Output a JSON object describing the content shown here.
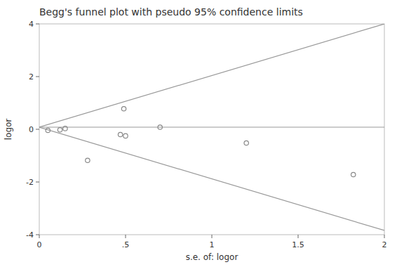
{
  "chart_data": {
    "type": "scatter",
    "title": "Begg's funnel plot with pseudo 95% confidence limits",
    "x_label": "s.e. of: logor",
    "y_label": "logor",
    "xlim": [
      0,
      2
    ],
    "ylim": [
      -4,
      4
    ],
    "xticks": [
      0,
      {
        "value": 0.5,
        "label": ".5"
      },
      1,
      1.5,
      2
    ],
    "yticks": [
      -4,
      -2,
      0,
      2,
      4
    ],
    "grid": false,
    "series": [
      {
        "type": "line",
        "x": [
          0,
          2.0
        ],
        "values": [
          0.08,
          4.0
        ],
        "color": "#999999",
        "line_style": "solid"
      },
      {
        "type": "line",
        "x": [
          0,
          2.0
        ],
        "values": [
          0.08,
          -3.84
        ],
        "color": "#999999",
        "line_style": "solid"
      },
      {
        "type": "line",
        "x": [
          0,
          2.0
        ],
        "values": [
          0.08,
          0.08
        ],
        "color": "#999999",
        "line_style": "solid"
      },
      {
        "type": "scatter",
        "x": [
          0.05,
          0.12,
          0.15,
          0.28,
          0.47,
          0.49,
          0.5,
          0.7,
          1.2,
          1.82
        ],
        "values": [
          -0.04,
          -0.02,
          0.03,
          -1.18,
          -0.2,
          0.78,
          -0.25,
          0.08,
          -0.52,
          -1.72
        ],
        "color": "#888888",
        "marker": "open-circle"
      }
    ]
  }
}
